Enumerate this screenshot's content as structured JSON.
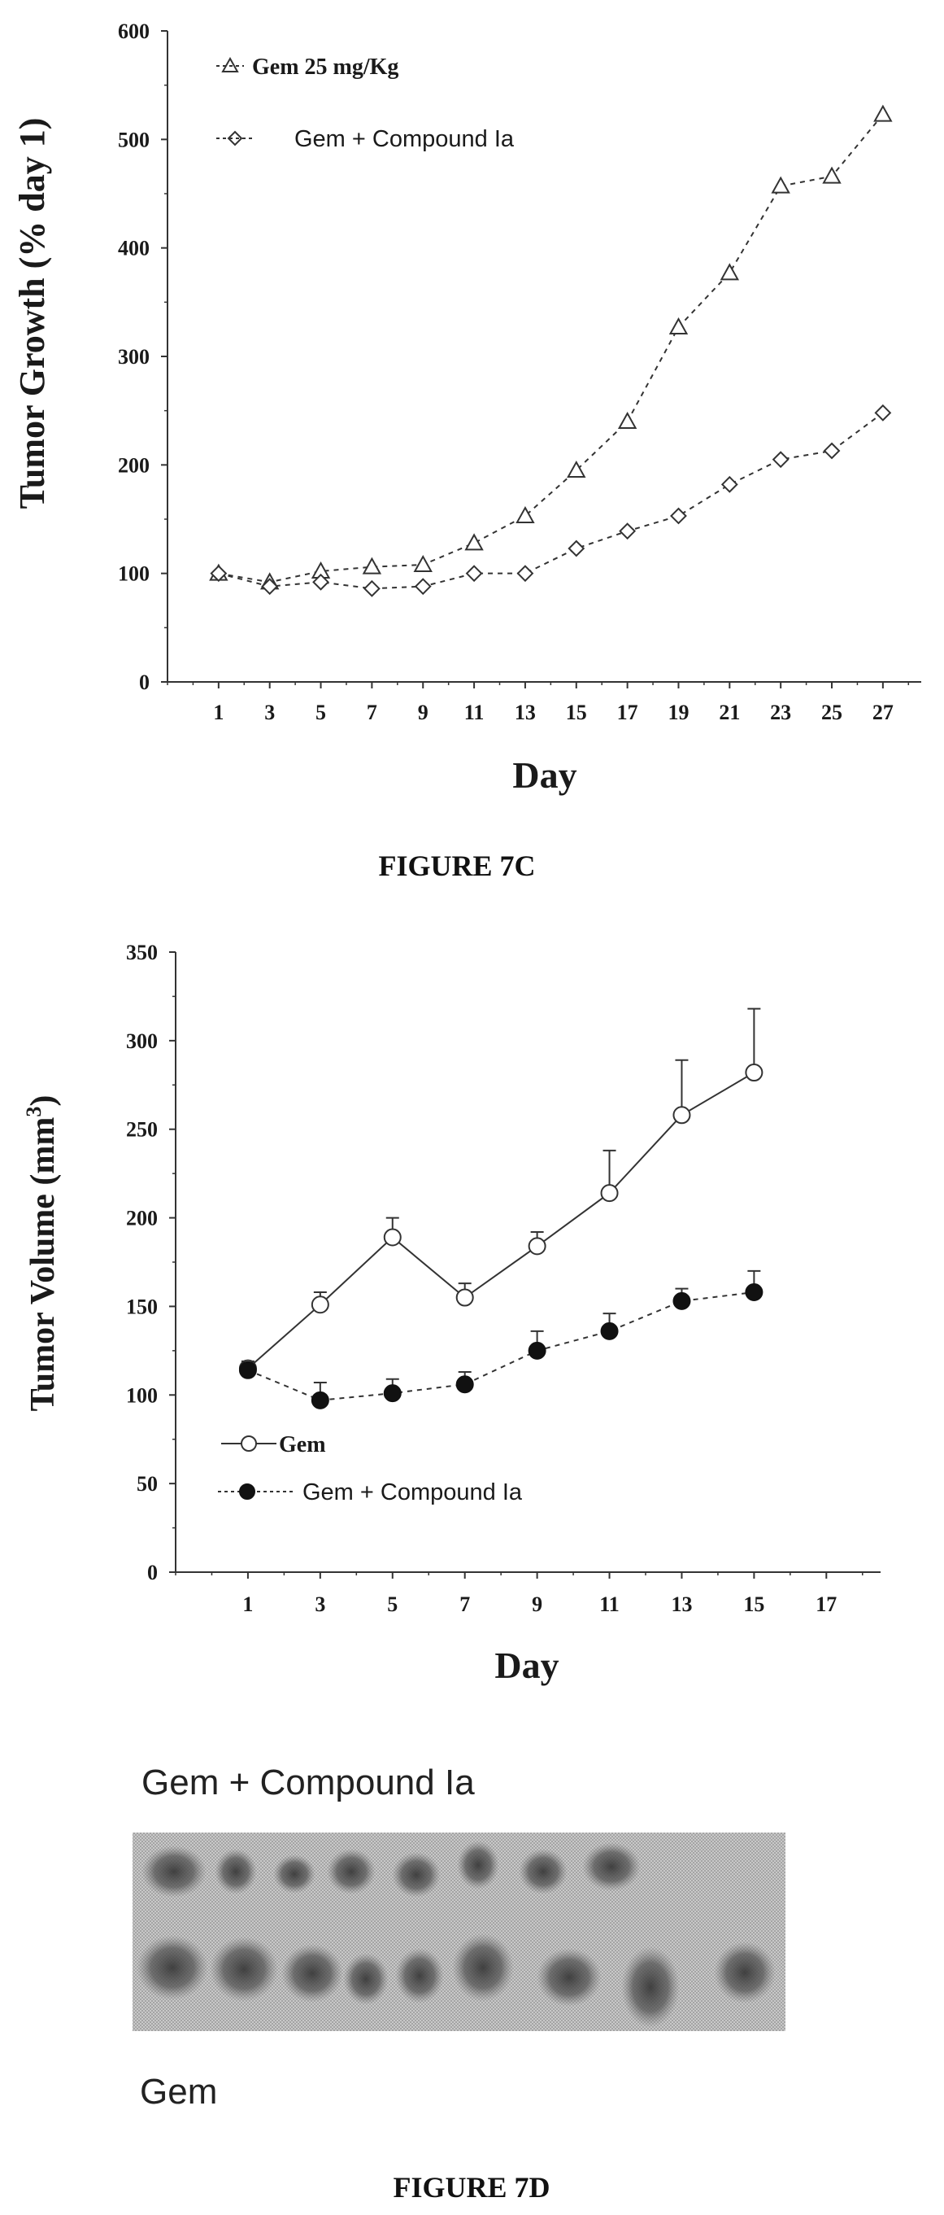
{
  "figure_7c": {
    "caption": "FIGURE 7C"
  },
  "figure_7d": {
    "caption": "FIGURE 7D",
    "photo": {
      "label_top": "Gem + Compound Ia",
      "label_bottom": "Gem"
    }
  },
  "chart_data": [
    {
      "type": "line",
      "ylabel": "Tumor Growth (% day 1)",
      "xlabel": "Day",
      "ylim": [
        0,
        600
      ],
      "yticks": [
        0,
        100,
        200,
        300,
        400,
        500,
        600
      ],
      "xticks": [
        1,
        3,
        5,
        7,
        9,
        11,
        13,
        15,
        17,
        19,
        21,
        23,
        25,
        27
      ],
      "legend_position": "top-left",
      "grid": false,
      "series": [
        {
          "name": "Gem 25 mg/Kg",
          "marker": "triangle-open",
          "x": [
            1,
            3,
            5,
            7,
            9,
            11,
            13,
            15,
            17,
            19,
            21,
            23,
            25,
            27
          ],
          "y": [
            100,
            92,
            102,
            106,
            108,
            128,
            153,
            195,
            240,
            327,
            377,
            457,
            466,
            523
          ]
        },
        {
          "name": "Gem + Compound Ia",
          "marker": "diamond-open",
          "x": [
            1,
            3,
            5,
            7,
            9,
            11,
            13,
            15,
            17,
            19,
            21,
            23,
            25,
            27
          ],
          "y": [
            100,
            88,
            92,
            86,
            88,
            100,
            100,
            123,
            139,
            153,
            182,
            205,
            213,
            248
          ]
        }
      ]
    },
    {
      "type": "line",
      "ylabel": "Tumor Volume (mm3)",
      "xlabel": "Day",
      "ylim": [
        0,
        350
      ],
      "yticks": [
        0,
        50,
        100,
        150,
        200,
        250,
        300,
        350
      ],
      "xticks": [
        1,
        3,
        5,
        7,
        9,
        11,
        13,
        15,
        17
      ],
      "legend_position": "bottom-left",
      "grid": false,
      "series": [
        {
          "name": "Gem",
          "marker": "circle-open",
          "x": [
            1,
            3,
            5,
            7,
            9,
            11,
            13,
            15
          ],
          "y": [
            115,
            151,
            189,
            155,
            184,
            214,
            258,
            282
          ],
          "error": [
            4,
            7,
            11,
            8,
            8,
            24,
            31,
            36
          ]
        },
        {
          "name": "Gem + Compound Ia",
          "marker": "circle-filled",
          "x": [
            1,
            3,
            5,
            7,
            9,
            11,
            13,
            15
          ],
          "y": [
            114,
            97,
            101,
            106,
            125,
            136,
            153,
            158
          ],
          "error": [
            4,
            10,
            8,
            7,
            11,
            10,
            7,
            12
          ]
        }
      ]
    }
  ]
}
